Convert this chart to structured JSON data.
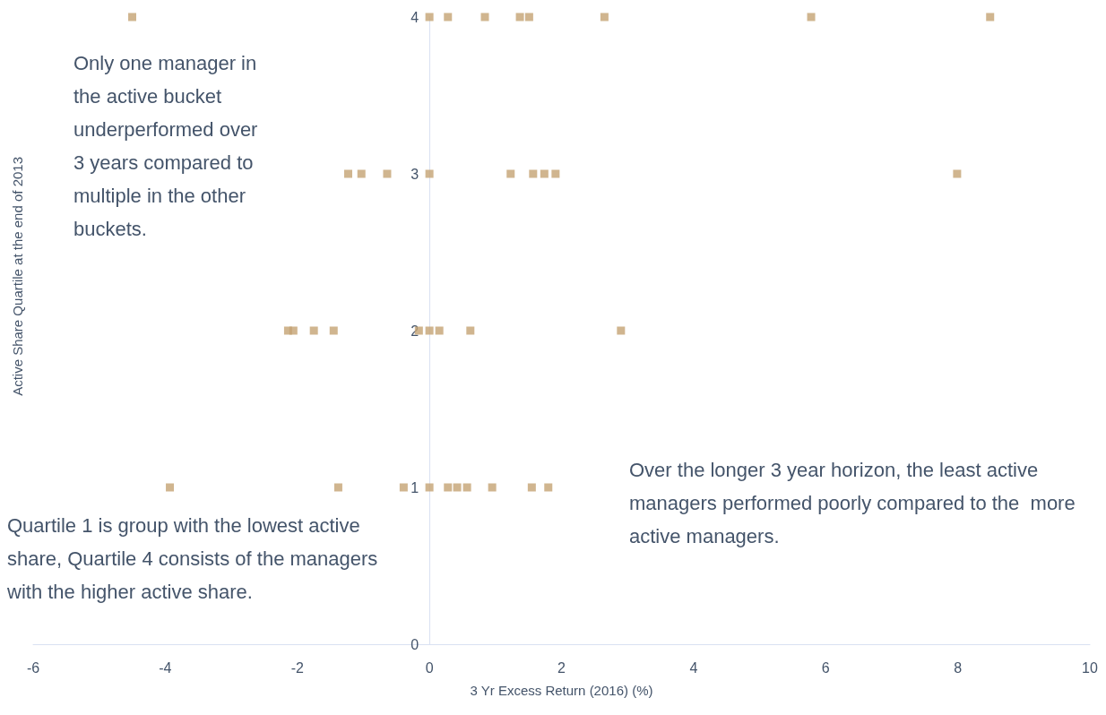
{
  "chart_data": {
    "type": "scatter",
    "xlabel": "3 Yr Excess Return (2016) (%)",
    "ylabel": "Active Share Quartile at the end of 2013",
    "x": [
      -4.5,
      0,
      0.28,
      0.84,
      1.37,
      1.51,
      2.65,
      5.78,
      8.49,
      -1.23,
      -1.03,
      -0.64,
      0,
      1.23,
      1.57,
      1.74,
      1.91,
      7.99,
      -2.14,
      -2.06,
      -1.75,
      -1.45,
      -0.16,
      0,
      0.15,
      0.62,
      2.9,
      -3.93,
      -1.38,
      -0.39,
      0,
      0.28,
      0.42,
      0.57,
      0.95,
      1.55,
      1.8
    ],
    "values": [
      4,
      4,
      4,
      4,
      4,
      4,
      4,
      4,
      4,
      3,
      3,
      3,
      3,
      3,
      3,
      3,
      3,
      3,
      2,
      2,
      2,
      2,
      2,
      2,
      2,
      2,
      2,
      1,
      1,
      1,
      1,
      1,
      1,
      1,
      1,
      1,
      1
    ],
    "color": "#c4a373",
    "marker": "square",
    "xlim": [
      -6,
      10
    ],
    "xticks": [
      -6,
      -4,
      -2,
      0,
      2,
      4,
      6,
      8,
      10
    ],
    "ylim": [
      0,
      4
    ],
    "yticks": [
      0,
      1,
      2,
      3,
      4
    ],
    "grid": false,
    "annotations": [
      "Only one manager in the active bucket underperformed over 3 years compared to multiple in the other buckets.",
      "Quartile 1 is group with the lowest active share, Quartile 4 consists of the managers with the higher active share.",
      "Over the longer 3 year horizon, the least active managers performed poorly compared to the  more active managers."
    ]
  }
}
